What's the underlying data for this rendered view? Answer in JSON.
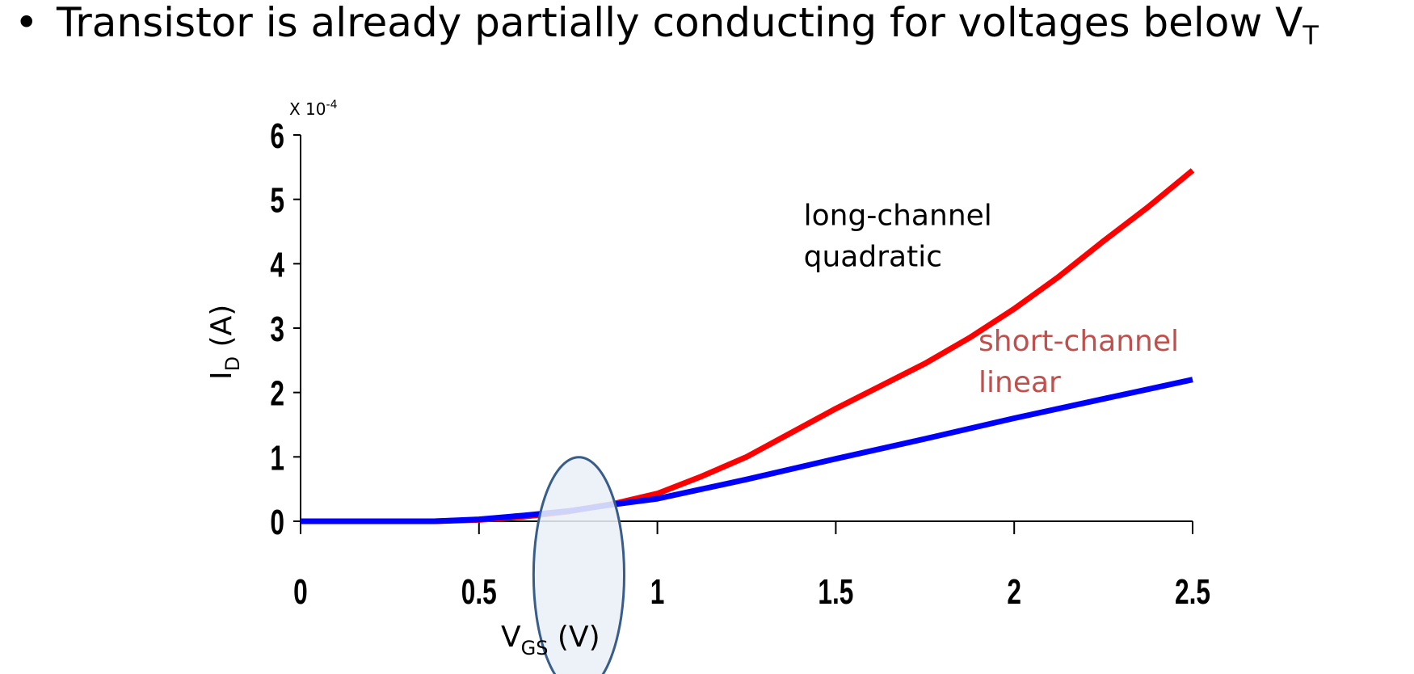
{
  "slide": {
    "bullet_char": "•",
    "bullet_text": "Transistor is already partially conducting for voltages below V",
    "bullet_subscript": "T"
  },
  "chart_data": {
    "type": "line",
    "title": "",
    "xlabel": {
      "main": "V",
      "sub": "GS",
      "rest": " (V)"
    },
    "ylabel": {
      "main": "I",
      "sub": "D",
      "rest": " (A)"
    },
    "y_multiplier": {
      "prefix": "X 10",
      "exponent": "-4"
    },
    "xlim": [
      0,
      2.5
    ],
    "ylim": [
      0,
      6
    ],
    "x_ticks": [
      0,
      0.5,
      1,
      1.5,
      2,
      2.5
    ],
    "x_tick_labels": [
      "0",
      "0.5",
      "1",
      "1.5",
      "2",
      "2.5"
    ],
    "y_ticks": [
      0,
      1,
      2,
      3,
      4,
      5,
      6
    ],
    "y_tick_labels": [
      "0",
      "1",
      "2",
      "3",
      "4",
      "5",
      "6"
    ],
    "grid": false,
    "series": [
      {
        "color": "#ff0000",
        "x": [
          0,
          0.375,
          0.5,
          0.625,
          0.75,
          0.875,
          1.0,
          1.125,
          1.25,
          1.5,
          1.75,
          1.875,
          2.0,
          2.125,
          2.25,
          2.375,
          2.5
        ],
        "y": [
          0,
          0,
          0.02,
          0.07,
          0.15,
          0.27,
          0.43,
          0.7,
          1.0,
          1.75,
          2.45,
          2.85,
          3.3,
          3.8,
          4.35,
          4.88,
          5.45
        ]
      },
      {
        "color": "#0000ff",
        "x": [
          0,
          0.375,
          0.5,
          0.625,
          0.75,
          0.875,
          1.0,
          1.25,
          1.5,
          1.75,
          2.0,
          2.25,
          2.5
        ],
        "y": [
          0,
          0,
          0.03,
          0.09,
          0.16,
          0.26,
          0.35,
          0.65,
          0.97,
          1.28,
          1.6,
          1.9,
          2.2
        ]
      }
    ],
    "annotations": [
      {
        "lines": [
          "long-channel",
          "quadratic"
        ],
        "color": "#000000",
        "at": [
          1.41,
          4.6
        ]
      },
      {
        "lines": [
          "short-channel",
          "linear"
        ],
        "color": "#c0504d",
        "at": [
          1.9,
          2.65
        ]
      }
    ],
    "highlight_ellipse": {
      "center": [
        0.78,
        -0.83
      ],
      "rx": 0.127,
      "ry": 3.65,
      "fill": "#ebf0f8",
      "stroke": "#385d8a"
    }
  }
}
